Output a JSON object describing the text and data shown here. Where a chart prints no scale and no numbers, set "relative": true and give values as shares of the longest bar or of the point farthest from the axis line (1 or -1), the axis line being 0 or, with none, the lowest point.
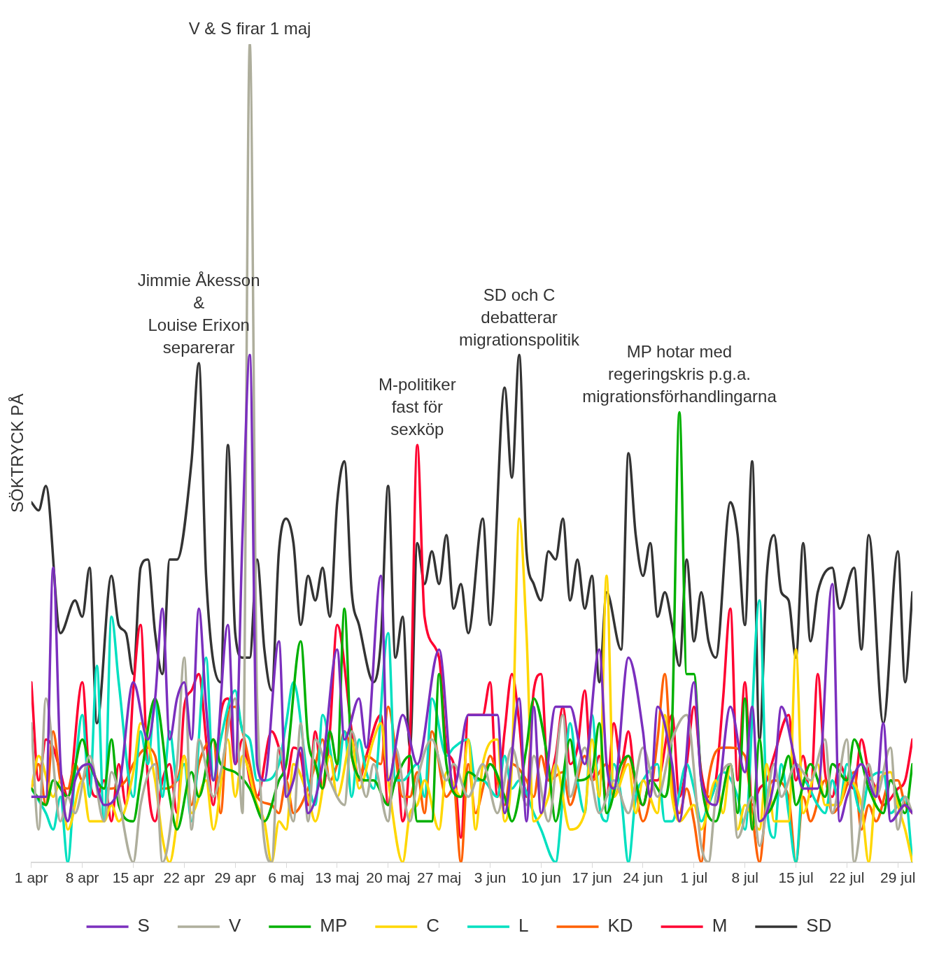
{
  "chart_data": {
    "type": "line",
    "relative": true,
    "ylabel": "SÖKTRYCK PÅ",
    "xlim": [
      "--04-01",
      "--07-31"
    ],
    "xticks": [
      {
        "value": "--04-01",
        "label": "1 apr"
      },
      {
        "value": "--04-08",
        "label": "8 apr"
      },
      {
        "value": "--04-15",
        "label": "15 apr"
      },
      {
        "value": "--04-22",
        "label": "22 apr"
      },
      {
        "value": "--04-29",
        "label": "29 apr"
      },
      {
        "value": "--05-06",
        "label": "6 maj"
      },
      {
        "value": "--05-13",
        "label": "13 maj"
      },
      {
        "value": "--05-20",
        "label": "20 maj"
      },
      {
        "value": "--05-27",
        "label": "27 maj"
      },
      {
        "value": "--06-03",
        "label": "3 jun"
      },
      {
        "value": "--06-10",
        "label": "10 jun"
      },
      {
        "value": "--06-17",
        "label": "17 jun"
      },
      {
        "value": "--06-24",
        "label": "24 jun"
      },
      {
        "value": "--07-01",
        "label": "1 jul"
      },
      {
        "value": "--07-08",
        "label": "8 jul"
      },
      {
        "value": "--07-15",
        "label": "15 jul"
      },
      {
        "value": "--07-22",
        "label": "22 jul"
      },
      {
        "value": "--07-29",
        "label": "29 jul"
      }
    ],
    "legend": "bottom",
    "marker": "none",
    "line_style": "solid",
    "annotations": [
      {
        "text": "V & S firar 1 maj",
        "x": "--05-01",
        "y": 1.0
      },
      {
        "text": "Jimmie Åkesson\n&\nLouise Erixon\nseparerar",
        "x": "--04-24",
        "y": 0.61
      },
      {
        "text": "M-politiker\nfast för\nsexköp",
        "x": "--05-24",
        "y": 0.51
      },
      {
        "text": "SD och C\ndebatterar\nmigrationspolitik",
        "x": "--06-07",
        "y": 0.62
      },
      {
        "text": "MP hotar med\nregeringskris p.g.a.\nmigrationsförhandlingarna",
        "x": "--06-29",
        "y": 0.55
      }
    ],
    "series": [
      {
        "name": "S",
        "color": "#7b2fbe",
        "x": [
          "--04-01",
          "--04-03",
          "--04-04",
          "--04-05",
          "--04-06",
          "--04-07",
          "--04-09",
          "--04-11",
          "--04-13",
          "--04-15",
          "--04-17",
          "--04-18",
          "--04-19",
          "--04-20",
          "--04-21",
          "--04-22",
          "--04-23",
          "--04-24",
          "--04-25",
          "--04-26",
          "--04-28",
          "--04-29",
          "--04-30",
          "--05-01",
          "--05-02",
          "--05-03",
          "--05-05",
          "--05-06",
          "--05-07",
          "--05-08",
          "--05-09",
          "--05-11",
          "--05-13",
          "--05-14",
          "--05-16",
          "--05-17",
          "--05-19",
          "--05-20",
          "--05-22",
          "--05-24",
          "--05-27",
          "--05-29",
          "--05-31",
          "--06-02",
          "--06-04",
          "--06-05",
          "--06-07",
          "--06-08",
          "--06-09",
          "--06-10",
          "--06-12",
          "--06-14",
          "--06-16",
          "--06-18",
          "--06-19",
          "--06-20",
          "--06-22",
          "--06-24",
          "--06-25",
          "--06-26",
          "--06-28",
          "--06-29",
          "--07-01",
          "--07-02",
          "--07-04",
          "--07-06",
          "--07-08",
          "--07-09",
          "--07-10",
          "--07-12",
          "--07-13",
          "--07-15",
          "--07-16",
          "--07-18",
          "--07-20",
          "--07-21",
          "--07-22",
          "--07-24",
          "--07-26",
          "--07-27",
          "--07-28",
          "--07-30",
          "--07-31"
        ],
        "values": [
          0.08,
          0.08,
          0.36,
          0.12,
          0.05,
          0.1,
          0.12,
          0.07,
          0.09,
          0.22,
          0.15,
          0.2,
          0.31,
          0.15,
          0.2,
          0.22,
          0.15,
          0.31,
          0.19,
          0.1,
          0.29,
          0.12,
          0.4,
          0.62,
          0.12,
          0.1,
          0.27,
          0.08,
          0.1,
          0.14,
          0.06,
          0.12,
          0.26,
          0.15,
          0.2,
          0.14,
          0.35,
          0.1,
          0.18,
          0.12,
          0.26,
          0.09,
          0.18,
          0.18,
          0.18,
          0.06,
          0.2,
          0.05,
          0.19,
          0.06,
          0.19,
          0.19,
          0.12,
          0.26,
          0.12,
          0.09,
          0.25,
          0.16,
          0.08,
          0.19,
          0.12,
          0.05,
          0.22,
          0.1,
          0.07,
          0.19,
          0.11,
          0.19,
          0.05,
          0.1,
          0.19,
          0.12,
          0.09,
          0.09,
          0.34,
          0.05,
          0.08,
          0.12,
          0.08,
          0.17,
          0.05,
          0.07,
          0.06
        ]
      },
      {
        "name": "V",
        "color": "#aeae9c",
        "x": [
          "--04-01",
          "--04-02",
          "--04-03",
          "--04-05",
          "--04-06",
          "--04-07",
          "--04-09",
          "--04-11",
          "--04-12",
          "--04-15",
          "--04-16",
          "--04-18",
          "--04-19",
          "--04-21",
          "--04-22",
          "--04-23",
          "--04-24",
          "--04-26",
          "--04-27",
          "--04-29",
          "--04-30",
          "--05-01",
          "--05-02",
          "--05-04",
          "--05-05",
          "--05-07",
          "--05-08",
          "--05-09",
          "--05-10",
          "--05-12",
          "--05-14",
          "--05-15",
          "--05-17",
          "--05-18",
          "--05-20",
          "--05-21",
          "--05-23",
          "--05-24",
          "--05-26",
          "--05-28",
          "--05-29",
          "--05-31",
          "--06-02",
          "--06-04",
          "--06-06",
          "--06-08",
          "--06-09",
          "--06-11",
          "--06-13",
          "--06-14",
          "--06-16",
          "--06-18",
          "--06-20",
          "--06-22",
          "--06-24",
          "--06-26",
          "--06-28",
          "--06-30",
          "--07-02",
          "--07-03",
          "--07-04",
          "--07-06",
          "--07-07",
          "--07-09",
          "--07-10",
          "--07-12",
          "--07-13",
          "--07-15",
          "--07-17",
          "--07-19",
          "--07-20",
          "--07-22",
          "--07-23",
          "--07-25",
          "--07-26",
          "--07-28",
          "--07-29",
          "--07-30",
          "--07-31"
        ],
        "values": [
          0.17,
          0.04,
          0.2,
          0.05,
          0.08,
          0.06,
          0.13,
          0.05,
          0.11,
          0,
          0.07,
          0.12,
          0,
          0.12,
          0.25,
          0.04,
          0.15,
          0.08,
          0.11,
          0.2,
          0.06,
          1.0,
          0.2,
          0,
          0.14,
          0.05,
          0.17,
          0.05,
          0.15,
          0.1,
          0.07,
          0.16,
          0.08,
          0.12,
          0.05,
          0.14,
          0.05,
          0.1,
          0.15,
          0.1,
          0.12,
          0.08,
          0.12,
          0.06,
          0.14,
          0.07,
          0.13,
          0.05,
          0.18,
          0.08,
          0.14,
          0.06,
          0.1,
          0.06,
          0.14,
          0.08,
          0.15,
          0.18,
          0.02,
          0,
          0.08,
          0.12,
          0.03,
          0.08,
          0.02,
          0.12,
          0.08,
          0.12,
          0.1,
          0.15,
          0.06,
          0.15,
          0,
          0.12,
          0.08,
          0.14,
          0.04,
          0.08,
          0.06
        ]
      },
      {
        "name": "MP",
        "color": "#00b000",
        "x": [
          "--04-01",
          "--04-03",
          "--04-04",
          "--04-06",
          "--04-08",
          "--04-09",
          "--04-11",
          "--04-12",
          "--04-13",
          "--04-15",
          "--04-16",
          "--04-18",
          "--04-20",
          "--04-21",
          "--04-23",
          "--04-24",
          "--04-26",
          "--04-27",
          "--04-29",
          "--05-01",
          "--05-03",
          "--05-05",
          "--05-06",
          "--05-08",
          "--05-09",
          "--05-10",
          "--05-11",
          "--05-12",
          "--05-13",
          "--05-14",
          "--05-15",
          "--05-17",
          "--05-18",
          "--05-20",
          "--05-21",
          "--05-23",
          "--05-24",
          "--05-26",
          "--05-27",
          "--05-28",
          "--05-30",
          "--05-31",
          "--06-02",
          "--06-03",
          "--06-05",
          "--06-06",
          "--06-08",
          "--06-09",
          "--06-11",
          "--06-12",
          "--06-14",
          "--06-15",
          "--06-17",
          "--06-18",
          "--06-19",
          "--06-21",
          "--06-22",
          "--06-24",
          "--06-25",
          "--06-27",
          "--06-28",
          "--06-29",
          "--06-30",
          "--07-01",
          "--07-02",
          "--07-04",
          "--07-06",
          "--07-07",
          "--07-08",
          "--07-09",
          "--07-10",
          "--07-11",
          "--07-13",
          "--07-14",
          "--07-15",
          "--07-17",
          "--07-19",
          "--07-20",
          "--07-22",
          "--07-23",
          "--07-25",
          "--07-27",
          "--07-28",
          "--07-30",
          "--07-31"
        ],
        "values": [
          0.09,
          0.07,
          0.1,
          0.08,
          0.15,
          0.12,
          0.09,
          0.15,
          0.07,
          0.05,
          0.1,
          0.2,
          0.08,
          0.04,
          0.11,
          0.08,
          0.15,
          0.12,
          0.11,
          0.09,
          0.05,
          0.1,
          0.12,
          0.27,
          0.15,
          0.12,
          0.09,
          0.16,
          0.12,
          0.31,
          0.13,
          0.1,
          0.1,
          0.07,
          0.1,
          0.13,
          0.05,
          0.05,
          0.23,
          0.12,
          0.08,
          0.11,
          0.1,
          0.12,
          0.08,
          0.05,
          0.14,
          0.2,
          0.12,
          0.05,
          0.15,
          0.1,
          0.11,
          0.17,
          0.06,
          0.12,
          0.13,
          0.07,
          0.1,
          0.08,
          0.17,
          0.55,
          0.23,
          0.23,
          0.1,
          0.05,
          0.12,
          0.06,
          0.2,
          0.04,
          0.15,
          0.06,
          0.1,
          0.13,
          0.07,
          0.12,
          0.08,
          0.12,
          0.1,
          0.15,
          0.09,
          0.06,
          0.1,
          0.06,
          0.12
        ]
      },
      {
        "name": "C",
        "color": "#ffd700",
        "x": [
          "--04-01",
          "--04-02",
          "--04-04",
          "--04-05",
          "--04-06",
          "--04-08",
          "--04-09",
          "--04-11",
          "--04-12",
          "--04-13",
          "--04-15",
          "--04-16",
          "--04-18",
          "--04-19",
          "--04-20",
          "--04-21",
          "--04-22",
          "--04-23",
          "--04-25",
          "--04-26",
          "--04-28",
          "--04-29",
          "--04-30",
          "--05-02",
          "--05-03",
          "--05-04",
          "--05-05",
          "--05-06",
          "--05-07",
          "--05-09",
          "--05-10",
          "--05-12",
          "--05-13",
          "--05-15",
          "--05-16",
          "--05-18",
          "--05-19",
          "--05-20",
          "--05-22",
          "--05-23",
          "--05-24",
          "--05-25",
          "--05-27",
          "--05-28",
          "--05-30",
          "--05-31",
          "--06-01",
          "--06-02",
          "--06-04",
          "--06-05",
          "--06-06",
          "--06-07",
          "--06-08",
          "--06-09",
          "--06-11",
          "--06-12",
          "--06-14",
          "--06-16",
          "--06-17",
          "--06-18",
          "--06-19",
          "--06-20",
          "--06-22",
          "--06-23",
          "--06-24",
          "--06-26",
          "--06-27",
          "--06-28",
          "--06-29",
          "--07-01",
          "--07-02",
          "--07-04",
          "--07-05",
          "--07-06",
          "--07-07",
          "--07-08",
          "--07-10",
          "--07-11",
          "--07-12",
          "--07-14",
          "--07-15",
          "--07-16",
          "--07-18",
          "--07-19",
          "--07-21",
          "--07-22",
          "--07-24",
          "--07-25",
          "--07-26",
          "--07-28",
          "--07-29",
          "--07-30",
          "--07-31"
        ],
        "values": [
          0.09,
          0.13,
          0.08,
          0.1,
          0.04,
          0.1,
          0.05,
          0.05,
          0.07,
          0.05,
          0.11,
          0.17,
          0.1,
          0.03,
          0,
          0.05,
          0.13,
          0.06,
          0.1,
          0.04,
          0.15,
          0.08,
          0.13,
          0.07,
          0.05,
          0,
          0.05,
          0.04,
          0.12,
          0.08,
          0.05,
          0.13,
          0.08,
          0.15,
          0.09,
          0.15,
          0.17,
          0.1,
          0,
          0.06,
          0.07,
          0.1,
          0.04,
          0.11,
          0.08,
          0.15,
          0.04,
          0.12,
          0.15,
          0.05,
          0.12,
          0.42,
          0.28,
          0.05,
          0.08,
          0.12,
          0.04,
          0.06,
          0.15,
          0.08,
          0.35,
          0.08,
          0.12,
          0.06,
          0.1,
          0.06,
          0.18,
          0.08,
          0.05,
          0.07,
          0.04,
          0.1,
          0.06,
          0.12,
          0.04,
          0.07,
          0.04,
          0.12,
          0.05,
          0.05,
          0.26,
          0.06,
          0.12,
          0.07,
          0.07,
          0.1,
          0.07,
          0,
          0.09,
          0.11,
          0.07,
          0.04,
          0
        ]
      },
      {
        "name": "L",
        "color": "#00e0c0",
        "x": [
          "--04-01",
          "--04-03",
          "--04-04",
          "--04-05",
          "--04-06",
          "--04-07",
          "--04-08",
          "--04-09",
          "--04-10",
          "--04-11",
          "--04-12",
          "--04-13",
          "--04-15",
          "--04-16",
          "--04-17",
          "--04-18",
          "--04-19",
          "--04-20",
          "--04-21",
          "--04-22",
          "--04-23",
          "--04-25",
          "--04-26",
          "--04-27",
          "--04-29",
          "--04-30",
          "--05-01",
          "--05-02",
          "--05-03",
          "--05-05",
          "--05-06",
          "--05-07",
          "--05-09",
          "--05-10",
          "--05-11",
          "--05-13",
          "--05-14",
          "--05-15",
          "--05-16",
          "--05-17",
          "--05-18",
          "--05-20",
          "--05-21",
          "--05-22",
          "--05-24",
          "--05-25",
          "--05-26",
          "--05-28",
          "--05-29",
          "--05-31",
          "--06-01",
          "--06-02",
          "--06-04",
          "--06-05",
          "--06-06",
          "--06-07",
          "--06-09",
          "--06-10",
          "--06-12",
          "--06-13",
          "--06-14",
          "--06-15",
          "--06-16",
          "--06-17",
          "--06-18",
          "--06-19",
          "--06-20",
          "--06-21",
          "--06-22",
          "--06-23",
          "--06-24",
          "--06-26",
          "--06-27",
          "--06-28",
          "--06-30",
          "--07-01",
          "--07-02",
          "--07-03",
          "--07-05",
          "--07-07",
          "--07-08",
          "--07-10",
          "--07-11",
          "--07-12",
          "--07-13",
          "--07-14",
          "--07-15",
          "--07-16",
          "--07-18",
          "--07-19",
          "--07-20",
          "--07-21",
          "--07-22",
          "--07-24",
          "--07-25",
          "--07-27",
          "--07-28",
          "--07-30",
          "--07-31"
        ],
        "values": [
          0.09,
          0.06,
          0.04,
          0.08,
          0,
          0.11,
          0.18,
          0.08,
          0.24,
          0.05,
          0.3,
          0.22,
          0.08,
          0.16,
          0.12,
          0.2,
          0.08,
          0.16,
          0.1,
          0.12,
          0.05,
          0.25,
          0.1,
          0.15,
          0.21,
          0.16,
          0.15,
          0.1,
          0.1,
          0.12,
          0.17,
          0.22,
          0.1,
          0.07,
          0.18,
          0.1,
          0.16,
          0.08,
          0.15,
          0.11,
          0.09,
          0.28,
          0.1,
          0.1,
          0.12,
          0.08,
          0.2,
          0.13,
          0.14,
          0.15,
          0.1,
          0.1,
          0.08,
          0.13,
          0.09,
          0.1,
          0.06,
          0.04,
          0,
          0.08,
          0.17,
          0.1,
          0.06,
          0.18,
          0.07,
          0.05,
          0.12,
          0.08,
          0,
          0.08,
          0.1,
          0.12,
          0.05,
          0.05,
          0.12,
          0.09,
          0.05,
          0.07,
          0.11,
          0.08,
          0.04,
          0.32,
          0.07,
          0.03,
          0.12,
          0.06,
          0,
          0.1,
          0.07,
          0.06,
          0.1,
          0.07,
          0.12,
          0.06,
          0.1,
          0.11,
          0.06,
          0.08,
          0
        ]
      },
      {
        "name": "KD",
        "color": "#ff6000",
        "x": [
          "--04-01",
          "--04-02",
          "--04-03",
          "--04-04",
          "--04-05",
          "--04-06",
          "--04-07",
          "--04-08",
          "--04-09",
          "--04-10",
          "--04-11",
          "--04-12",
          "--04-14",
          "--04-15",
          "--04-17",
          "--04-18",
          "--04-19",
          "--04-21",
          "--04-22",
          "--04-23",
          "--04-24",
          "--04-26",
          "--04-27",
          "--04-28",
          "--04-29",
          "--04-30",
          "--05-01",
          "--05-02",
          "--05-04",
          "--05-05",
          "--05-06",
          "--05-07",
          "--05-09",
          "--05-10",
          "--05-11",
          "--05-12",
          "--05-13",
          "--05-14",
          "--05-16",
          "--05-17",
          "--05-19",
          "--05-20",
          "--05-22",
          "--05-23",
          "--05-24",
          "--05-25",
          "--05-26",
          "--05-28",
          "--05-29",
          "--05-30",
          "--05-31",
          "--06-01",
          "--06-02",
          "--06-03",
          "--06-05",
          "--06-06",
          "--06-08",
          "--06-09",
          "--06-10",
          "--06-11",
          "--06-13",
          "--06-14",
          "--06-16",
          "--06-17",
          "--06-19",
          "--06-20",
          "--06-22",
          "--06-24",
          "--06-25",
          "--06-26",
          "--06-27",
          "--06-28",
          "--06-29",
          "--06-30",
          "--07-01",
          "--07-02",
          "--07-03",
          "--07-05",
          "--07-06",
          "--07-08",
          "--07-09",
          "--07-10",
          "--07-11",
          "--07-12",
          "--07-14",
          "--07-15",
          "--07-16",
          "--07-17",
          "--07-19",
          "--07-20",
          "--07-21",
          "--07-23",
          "--07-24",
          "--07-25",
          "--07-26",
          "--07-28",
          "--07-29",
          "--07-30",
          "--07-31"
        ],
        "values": [
          0.09,
          0.12,
          0.07,
          0.16,
          0.1,
          0.09,
          0.12,
          0.1,
          0.12,
          0.1,
          0.09,
          0.09,
          0.1,
          0.12,
          0.14,
          0.13,
          0.09,
          0.1,
          0.13,
          0.07,
          0.12,
          0.15,
          0.06,
          0.18,
          0.19,
          0.16,
          0.12,
          0.08,
          0.07,
          0.06,
          0.1,
          0.06,
          0.09,
          0.12,
          0.15,
          0.1,
          0.12,
          0.16,
          0.1,
          0.13,
          0.12,
          0.19,
          0.08,
          0.08,
          0.11,
          0.06,
          0.16,
          0.08,
          0.09,
          0,
          0.12,
          0.06,
          0.09,
          0.13,
          0.07,
          0.12,
          0.1,
          0.08,
          0.13,
          0.1,
          0.11,
          0.07,
          0.13,
          0.1,
          0.12,
          0.08,
          0.13,
          0.05,
          0.08,
          0.15,
          0.23,
          0.1,
          0.06,
          0.09,
          0.05,
          0,
          0.1,
          0.14,
          0.14,
          0.13,
          0.06,
          0,
          0.08,
          0.1,
          0.08,
          0,
          0.08,
          0.05,
          0.1,
          0.06,
          0.07,
          0.11,
          0.04,
          0.07,
          0.05,
          0.1,
          0.1,
          0.07,
          0.06
        ]
      },
      {
        "name": "M",
        "color": "#ff0030",
        "x": [
          "--04-01",
          "--04-02",
          "--04-03",
          "--04-04",
          "--04-05",
          "--04-06",
          "--04-08",
          "--04-09",
          "--04-10",
          "--04-11",
          "--04-12",
          "--04-13",
          "--04-14",
          "--04-15",
          "--04-16",
          "--04-17",
          "--04-18",
          "--04-19",
          "--04-20",
          "--04-21",
          "--04-22",
          "--04-23",
          "--04-24",
          "--04-25",
          "--04-26",
          "--04-27",
          "--04-28",
          "--04-29",
          "--04-30",
          "--05-01",
          "--05-02",
          "--05-04",
          "--05-05",
          "--05-06",
          "--05-07",
          "--05-08",
          "--05-09",
          "--05-10",
          "--05-11",
          "--05-12",
          "--05-13",
          "--05-15",
          "--05-16",
          "--05-17",
          "--05-19",
          "--05-20",
          "--05-21",
          "--05-22",
          "--05-23",
          "--05-24",
          "--05-25",
          "--05-27",
          "--05-28",
          "--05-29",
          "--05-30",
          "--05-31",
          "--06-02",
          "--06-03",
          "--06-04",
          "--06-05",
          "--06-06",
          "--06-07",
          "--06-08",
          "--06-09",
          "--06-10",
          "--06-11",
          "--06-12",
          "--06-13",
          "--06-14",
          "--06-15",
          "--06-16",
          "--06-17",
          "--06-18",
          "--06-19",
          "--06-20",
          "--06-21",
          "--06-22",
          "--06-23",
          "--06-24",
          "--06-25",
          "--06-26",
          "--06-28",
          "--06-29",
          "--06-30",
          "--07-01",
          "--07-02",
          "--07-03",
          "--07-04",
          "--07-05",
          "--07-06",
          "--07-07",
          "--07-08",
          "--07-09",
          "--07-10",
          "--07-11",
          "--07-12",
          "--07-14",
          "--07-15",
          "--07-16",
          "--07-17",
          "--07-18",
          "--07-19",
          "--07-20",
          "--07-21",
          "--07-22",
          "--07-23",
          "--07-24",
          "--07-25",
          "--07-26",
          "--07-27",
          "--07-29",
          "--07-30",
          "--07-31"
        ],
        "values": [
          0.22,
          0.1,
          0.15,
          0.14,
          0.11,
          0.08,
          0.22,
          0.1,
          0.08,
          0.1,
          0.05,
          0.12,
          0.07,
          0.21,
          0.29,
          0.1,
          0.05,
          0.1,
          0.12,
          0.06,
          0.19,
          0.21,
          0.23,
          0.15,
          0.07,
          0.18,
          0.2,
          0.12,
          0.15,
          0.1,
          0.08,
          0.16,
          0.14,
          0.1,
          0.14,
          0.13,
          0.07,
          0.16,
          0.09,
          0.16,
          0.29,
          0.16,
          0.1,
          0.13,
          0.18,
          0.07,
          0.14,
          0.05,
          0.15,
          0.51,
          0.3,
          0.25,
          0.14,
          0.12,
          0.03,
          0.18,
          0.18,
          0.22,
          0.08,
          0.16,
          0.23,
          0.17,
          0.08,
          0.21,
          0.23,
          0.1,
          0.13,
          0.19,
          0.12,
          0.14,
          0.21,
          0.1,
          0.13,
          0.08,
          0.17,
          0.12,
          0.16,
          0.09,
          0.07,
          0.1,
          0.1,
          0.18,
          0.08,
          0.12,
          0.19,
          0.11,
          0.08,
          0.1,
          0.2,
          0.31,
          0.1,
          0.22,
          0.07,
          0.09,
          0.1,
          0.13,
          0.18,
          0.1,
          0.13,
          0.08,
          0.23,
          0.11,
          0.08,
          0.12,
          0.1,
          0.09,
          0.15,
          0.11,
          0.09,
          0.07,
          0.09,
          0.1,
          0.15
        ]
      },
      {
        "name": "SD",
        "color": "#333333",
        "x": [
          "--04-01",
          "--04-02",
          "--04-03",
          "--04-05",
          "--04-07",
          "--04-08",
          "--04-09",
          "--04-10",
          "--04-12",
          "--04-13",
          "--04-14",
          "--04-15",
          "--04-16",
          "--04-17",
          "--04-18",
          "--04-19",
          "--04-20",
          "--04-21",
          "--04-23",
          "--04-24",
          "--04-25",
          "--04-27",
          "--04-28",
          "--04-29",
          "--04-30",
          "--05-01",
          "--05-02",
          "--05-03",
          "--05-04",
          "--05-05",
          "--05-06",
          "--05-07",
          "--05-08",
          "--05-09",
          "--05-10",
          "--05-11",
          "--05-12",
          "--05-13",
          "--05-14",
          "--05-15",
          "--05-16",
          "--05-18",
          "--05-19",
          "--05-20",
          "--05-21",
          "--05-22",
          "--05-23",
          "--05-24",
          "--05-25",
          "--05-26",
          "--05-27",
          "--05-28",
          "--05-29",
          "--05-30",
          "--05-31",
          "--06-02",
          "--06-03",
          "--06-05",
          "--06-06",
          "--06-07",
          "--06-08",
          "--06-09",
          "--06-10",
          "--06-11",
          "--06-12",
          "--06-13",
          "--06-14",
          "--06-15",
          "--06-16",
          "--06-17",
          "--06-18",
          "--06-19",
          "--06-21",
          "--06-22",
          "--06-23",
          "--06-24",
          "--06-25",
          "--06-26",
          "--06-27",
          "--06-28",
          "--06-29",
          "--06-30",
          "--07-01",
          "--07-02",
          "--07-03",
          "--07-04",
          "--07-06",
          "--07-07",
          "--07-08",
          "--07-09",
          "--07-10",
          "--07-11",
          "--07-12",
          "--07-13",
          "--07-14",
          "--07-15",
          "--07-16",
          "--07-17",
          "--07-18",
          "--07-20",
          "--07-21",
          "--07-23",
          "--07-24",
          "--07-25",
          "--07-27",
          "--07-29",
          "--07-30",
          "--07-31"
        ],
        "values": [
          0.44,
          0.43,
          0.46,
          0.28,
          0.32,
          0.3,
          0.36,
          0.17,
          0.35,
          0.29,
          0.28,
          0.23,
          0.36,
          0.37,
          0.28,
          0.23,
          0.37,
          0.37,
          0.49,
          0.61,
          0.35,
          0.22,
          0.51,
          0.28,
          0.25,
          0.25,
          0.37,
          0.26,
          0.21,
          0.38,
          0.42,
          0.39,
          0.29,
          0.35,
          0.32,
          0.36,
          0.3,
          0.44,
          0.49,
          0.33,
          0.29,
          0.22,
          0.27,
          0.46,
          0.25,
          0.3,
          0.14,
          0.39,
          0.34,
          0.38,
          0.34,
          0.4,
          0.31,
          0.34,
          0.28,
          0.42,
          0.29,
          0.58,
          0.47,
          0.62,
          0.38,
          0.34,
          0.32,
          0.38,
          0.37,
          0.42,
          0.32,
          0.37,
          0.31,
          0.35,
          0.22,
          0.33,
          0.26,
          0.5,
          0.4,
          0.35,
          0.39,
          0.3,
          0.33,
          0.29,
          0.24,
          0.37,
          0.27,
          0.33,
          0.27,
          0.25,
          0.44,
          0.4,
          0.29,
          0.49,
          0.15,
          0.35,
          0.4,
          0.33,
          0.32,
          0.25,
          0.39,
          0.27,
          0.33,
          0.36,
          0.31,
          0.36,
          0.26,
          0.4,
          0.17,
          0.38,
          0.22,
          0.33
        ]
      }
    ]
  }
}
